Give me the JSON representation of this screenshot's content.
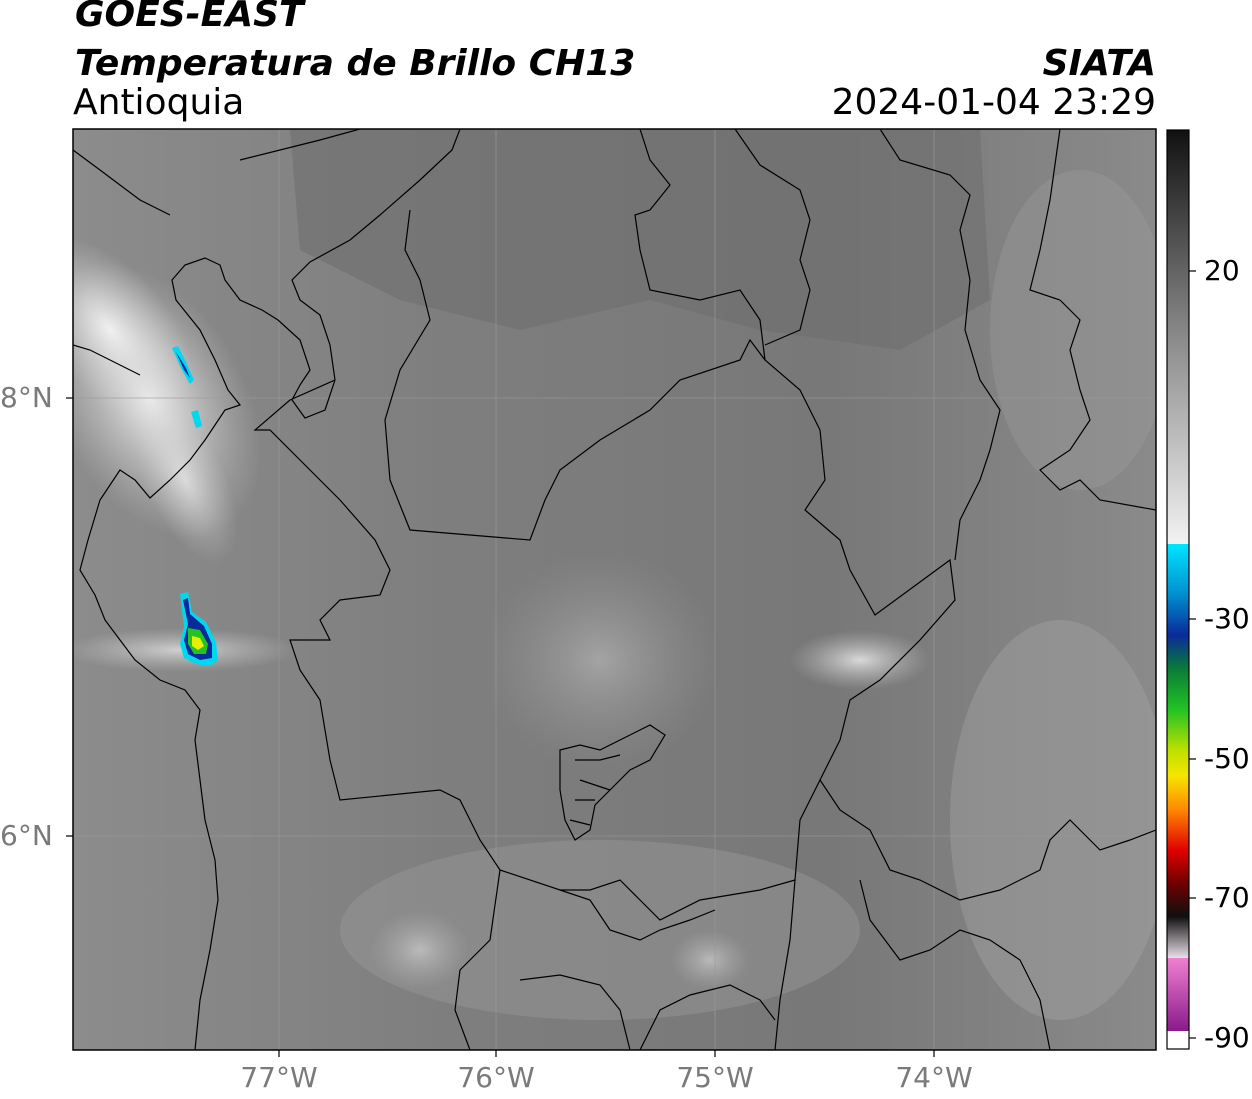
{
  "header": {
    "satellite": "GOES-EAST",
    "product": "Temperatura de Brillo CH13",
    "region": "Antioquia",
    "organization": "SIATA",
    "datetime": "2024-01-04 23:29"
  },
  "axes": {
    "lon_labels": [
      "77°W",
      "76°W",
      "75°W",
      "74°W"
    ],
    "lat_labels": [
      "8°N",
      "6°N"
    ],
    "gridlines": true
  },
  "colorbar": {
    "tick_labels": [
      "20",
      "-30",
      "-50",
      "-70",
      "-90"
    ],
    "colors": {
      "grayscale_top": "#111111",
      "grayscale_mid": "#8a8a8a",
      "grayscale_bottom": "#f2f2f2",
      "cyan": "#00e5ff",
      "blue": "#0a2a9a",
      "green": "#22c322",
      "yellow": "#f5e600",
      "orange": "#ff8a00",
      "red": "#e00000",
      "dark": "#1a1a1a",
      "pink": "#e060c0",
      "purple": "#8a1a8a"
    }
  }
}
